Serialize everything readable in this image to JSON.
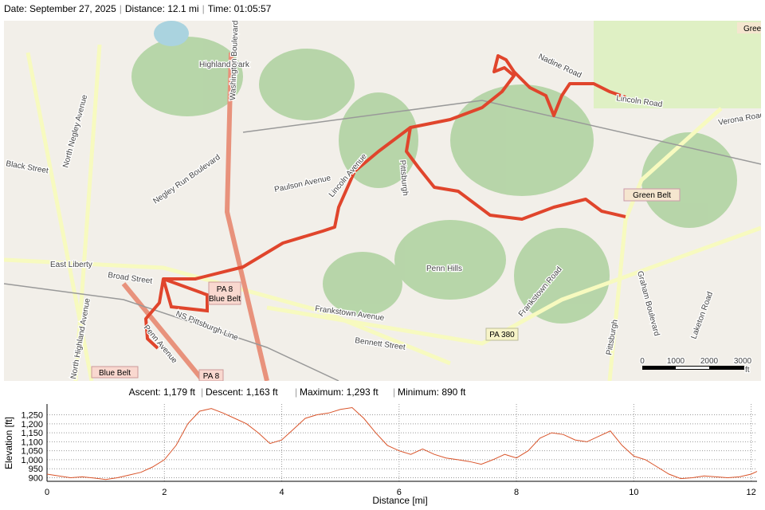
{
  "header": {
    "date": "Date: September 27, 2025",
    "distance": "Distance: 12.1 mi",
    "time": "Time: 01:05:57"
  },
  "map": {
    "labels": [
      "Highland Park",
      "Washington Boulevard",
      "North Negley Avenue",
      "Black Street",
      "Negley Run Boulevard",
      "Paulson Avenue",
      "East Liberty",
      "Broad Street",
      "Penn Avenue",
      "PA 8",
      "Blue Belt",
      "Frankstown Avenue",
      "Bennett Street",
      "NS Pittsburgh Line",
      "Penn Hills",
      "Pittsburgh",
      "Lincoln Avenue",
      "Nadine Road",
      "Lincoln Road",
      "Verona Road",
      "Green Belt",
      "Frankstown Road",
      "Graham Boulevard",
      "PA 380",
      "Laketon Road",
      "Green",
      "North Highland Avenue",
      "Pittsburgh"
    ],
    "scale": [
      "0",
      "1000",
      "2000",
      "3000",
      "ft"
    ]
  },
  "stats": {
    "ascent": "Ascent: 1,179 ft",
    "descent": "Descent: 1,163 ft",
    "maximum": "Maximum: 1,293 ft",
    "minimum": "Minimum: 890 ft"
  },
  "chart_data": {
    "type": "line",
    "x_label": "Distance [mi]",
    "y_label": "Elevation [ft]",
    "x": [
      0,
      0.2,
      0.4,
      0.6,
      0.8,
      1.0,
      1.2,
      1.4,
      1.6,
      1.8,
      2.0,
      2.2,
      2.4,
      2.6,
      2.8,
      3.0,
      3.2,
      3.4,
      3.6,
      3.8,
      4.0,
      4.2,
      4.4,
      4.6,
      4.8,
      5.0,
      5.2,
      5.4,
      5.6,
      5.8,
      6.0,
      6.2,
      6.4,
      6.6,
      6.8,
      7.0,
      7.2,
      7.4,
      7.6,
      7.8,
      8.0,
      8.2,
      8.4,
      8.6,
      8.8,
      9.0,
      9.2,
      9.4,
      9.6,
      9.8,
      10.0,
      10.2,
      10.4,
      10.6,
      10.8,
      11.0,
      11.2,
      11.4,
      11.6,
      11.8,
      12.0,
      12.1
    ],
    "series": [
      {
        "name": "Elevation",
        "color": "#d9542a",
        "values": [
          920,
          910,
          900,
          905,
          898,
          890,
          900,
          915,
          930,
          960,
          1000,
          1080,
          1200,
          1270,
          1285,
          1260,
          1230,
          1200,
          1150,
          1090,
          1110,
          1170,
          1230,
          1250,
          1260,
          1280,
          1290,
          1230,
          1150,
          1080,
          1050,
          1030,
          1060,
          1030,
          1010,
          1000,
          990,
          975,
          1000,
          1030,
          1010,
          1050,
          1120,
          1150,
          1140,
          1110,
          1100,
          1130,
          1160,
          1080,
          1020,
          1000,
          960,
          920,
          895,
          900,
          910,
          905,
          900,
          905,
          920,
          935
        ]
      }
    ],
    "xlim": [
      0,
      12.1
    ],
    "ylim": [
      880,
      1310
    ],
    "xticks": [
      0,
      2,
      4,
      6,
      8,
      10,
      12
    ],
    "yticks": [
      900,
      950,
      {
        "value": 1000,
        "label": "1,000"
      },
      {
        "value": 1050,
        "label": "1,050"
      },
      {
        "value": 1100,
        "label": "1,100"
      },
      {
        "value": 1150,
        "label": "1,150"
      },
      {
        "value": 1200,
        "label": "1,200"
      },
      {
        "value": 1250,
        "label": "1,250"
      }
    ],
    "grid": true
  }
}
